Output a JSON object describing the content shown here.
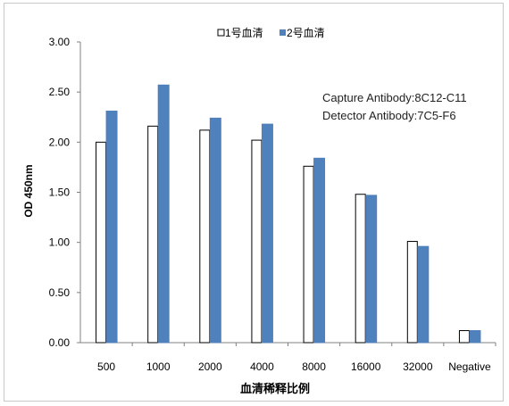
{
  "chart_data": {
    "type": "bar",
    "ylabel": "OD 450nm",
    "xlabel": "血清稀释比例",
    "ylim": [
      0,
      3
    ],
    "yticks": [
      "0.00",
      "0.50",
      "1.00",
      "1.50",
      "2.00",
      "2.50",
      "3.00"
    ],
    "categories": [
      "500",
      "1000",
      "2000",
      "4000",
      "8000",
      "16000",
      "32000",
      "Negative"
    ],
    "series": [
      {
        "name": "1号血清",
        "color": "#ffffff",
        "stroke": "#000000",
        "values": [
          2.0,
          2.16,
          2.12,
          2.02,
          1.76,
          1.48,
          1.01,
          0.12
        ]
      },
      {
        "name": "2号血清",
        "color": "#4f81bd",
        "stroke": "#4f81bd",
        "values": [
          2.31,
          2.57,
          2.24,
          2.18,
          1.84,
          1.47,
          0.96,
          0.12
        ]
      }
    ],
    "legend_position": "top-center",
    "grid": false,
    "annotations": [
      "Capture Antibody:8C12-C11",
      "Detector Antibody:7C5-F6"
    ]
  }
}
